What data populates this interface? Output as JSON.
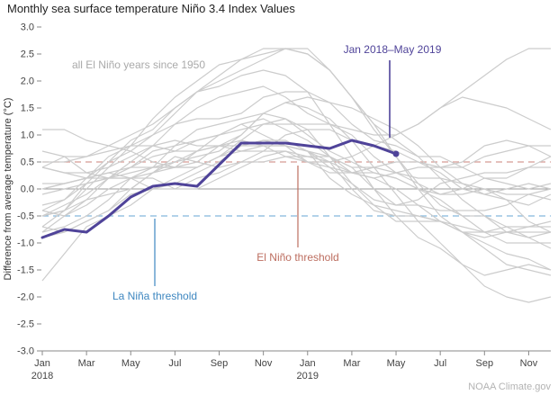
{
  "annotations": {
    "all_years_label": "all El Niño years since 1950",
    "highlight_label": "Jan 2018–May 2019",
    "el_nino_label": "El Niño threshold",
    "la_nina_label": "La Niña threshold",
    "credit": "NOAA Climate.gov"
  },
  "colors": {
    "highlight": "#4f4399",
    "background": "#cccccc",
    "zero_line": "#9b9b9b",
    "axis": "#8a8a8a",
    "el_nino_line": "#d59a93",
    "el_nino_text": "#bc6d5f",
    "la_nina_line": "#85b8dc",
    "la_nina_text": "#3e87c0",
    "all_years_text": "#aaaaaa",
    "credit_text": "#b3b3b3"
  },
  "chart_data": {
    "type": "line",
    "title": "Monthly sea surface temperature Niño 3.4 Index Values",
    "ylabel": "Difference from average temperature (°C)",
    "ylim": [
      -3.0,
      3.0
    ],
    "ytick_step": 0.5,
    "ytick_labels": [
      "3.0",
      "2.5",
      "2.0",
      "1.5",
      "1.0",
      "0.5",
      "0.0",
      "-0.5",
      "-1.0",
      "-1.5",
      "-2.0",
      "-2.5",
      "-3.0"
    ],
    "x_months": 24,
    "x_tick_labels": [
      "Jan",
      "Mar",
      "May",
      "Jul",
      "Sep",
      "Nov",
      "Jan",
      "Mar",
      "May",
      "Jul",
      "Sep",
      "Nov"
    ],
    "year_labels": [
      "2018",
      "2019"
    ],
    "thresholds": {
      "el_nino": 0.5,
      "la_nina": -0.5
    },
    "highlight_series": {
      "name": "Jan 2018–May 2019",
      "values": [
        -0.9,
        -0.75,
        -0.8,
        -0.5,
        -0.15,
        0.05,
        0.1,
        0.05,
        0.45,
        0.85,
        0.85,
        0.85,
        0.8,
        0.75,
        0.9,
        0.8,
        0.65
      ]
    },
    "background_series_label": "all El Niño years since 1950",
    "background_series": [
      [
        -0.8,
        -0.5,
        -0.2,
        0.2,
        0.4,
        0.6,
        0.7,
        0.9,
        1.0,
        1.2,
        1.0,
        0.8,
        0.5,
        0.4,
        0.3,
        0.3,
        0.2,
        0.0,
        -0.1,
        0.0,
        0.2,
        0.1,
        0.0,
        0.1
      ],
      [
        0.4,
        0.6,
        0.6,
        0.7,
        0.8,
        0.8,
        0.7,
        0.7,
        0.8,
        0.8,
        0.8,
        0.8,
        0.7,
        0.5,
        0.0,
        -0.4,
        -0.5,
        -0.5,
        -0.6,
        -0.8,
        -0.9,
        -0.8,
        -0.7,
        -0.7
      ],
      [
        -0.3,
        -0.2,
        0.2,
        0.6,
        0.8,
        1.0,
        1.2,
        1.3,
        1.3,
        1.4,
        1.7,
        1.8,
        1.8,
        1.6,
        1.2,
        0.9,
        0.8,
        0.6,
        0.6,
        0.4,
        0.2,
        0.2,
        0.4,
        0.6
      ],
      [
        -0.4,
        -0.2,
        0.1,
        0.2,
        0.2,
        0.4,
        0.8,
        1.1,
        1.2,
        1.3,
        1.4,
        1.3,
        1.1,
        0.6,
        0.1,
        -0.3,
        -0.6,
        -0.6,
        -0.6,
        -0.7,
        -0.8,
        -0.8,
        -0.8,
        -0.8
      ],
      [
        -0.5,
        -0.3,
        -0.1,
        0.2,
        0.5,
        0.8,
        1.2,
        1.5,
        1.7,
        1.8,
        1.9,
        1.7,
        1.4,
        1.2,
        1.0,
        0.6,
        0.3,
        0.2,
        0.2,
        0.1,
        0.0,
        -0.1,
        -0.1,
        -0.2
      ],
      [
        -0.7,
        -0.8,
        -0.6,
        -0.4,
        0.0,
        0.3,
        0.6,
        0.5,
        0.4,
        0.5,
        0.7,
        1.0,
        1.1,
        1.1,
        0.9,
        0.8,
        0.7,
        0.5,
        0.4,
        0.5,
        0.8,
        0.9,
        0.8,
        0.6
      ],
      [
        1.1,
        1.1,
        0.9,
        0.8,
        0.7,
        0.5,
        0.4,
        0.5,
        0.8,
        0.9,
        0.8,
        0.6,
        0.5,
        0.3,
        0.3,
        0.2,
        0.0,
        -0.3,
        -0.6,
        -0.8,
        -0.8,
        -0.7,
        -0.9,
        -1.1
      ],
      [
        -0.7,
        -0.4,
        0.1,
        0.5,
        0.9,
        1.1,
        1.5,
        1.8,
        1.9,
        2.1,
        2.2,
        2.1,
        1.8,
        1.2,
        0.6,
        0.0,
        -0.5,
        -0.9,
        -1.1,
        -1.4,
        -1.8,
        -2.0,
        -2.1,
        -2.0
      ],
      [
        -1.7,
        -1.2,
        -0.7,
        -0.5,
        -0.3,
        0.0,
        0.2,
        0.4,
        0.6,
        0.8,
        0.9,
        0.8,
        0.7,
        0.6,
        0.3,
        0.2,
        0.3,
        0.4,
        0.4,
        0.4,
        0.6,
        0.7,
        0.8,
        0.8
      ],
      [
        0.7,
        0.6,
        0.3,
        0.2,
        0.3,
        0.4,
        0.4,
        0.4,
        0.6,
        0.7,
        0.8,
        0.8,
        0.7,
        0.4,
        0.1,
        -0.2,
        -0.3,
        -0.3,
        -0.4,
        -0.4,
        -0.4,
        -0.3,
        -0.1,
        0.0
      ],
      [
        0.0,
        0.1,
        0.2,
        0.3,
        0.2,
        0.0,
        0.0,
        0.2,
        0.3,
        0.5,
        0.5,
        0.6,
        0.6,
        0.5,
        0.3,
        0.4,
        0.5,
        0.5,
        0.3,
        0.0,
        -0.1,
        0.0,
        0.1,
        0.0
      ],
      [
        0.0,
        0.1,
        0.2,
        0.5,
        0.7,
        1.0,
        1.4,
        1.8,
        2.0,
        2.2,
        2.4,
        2.6,
        2.6,
        2.2,
        1.7,
        1.2,
        0.9,
        0.6,
        0.2,
        -0.2,
        -0.5,
        -0.8,
        -0.9,
        -0.8
      ],
      [
        -0.5,
        -0.4,
        -0.2,
        -0.1,
        0.0,
        0.3,
        0.4,
        0.7,
        1.0,
        1.1,
        1.2,
        1.2,
        1.2,
        1.2,
        1.1,
        1.0,
        1.0,
        1.2,
        1.5,
        1.7,
        1.6,
        1.5,
        1.3,
        1.1
      ],
      [
        0.4,
        0.3,
        0.3,
        0.4,
        0.6,
        0.8,
        0.9,
        0.8,
        0.8,
        1.0,
        1.4,
        1.6,
        1.7,
        1.6,
        1.5,
        1.3,
        1.1,
        0.8,
        0.4,
        0.1,
        -0.1,
        -0.2,
        -0.3,
        -0.1
      ],
      [
        0.1,
        0.1,
        0.2,
        0.3,
        0.4,
        0.4,
        0.4,
        0.4,
        0.6,
        0.9,
        1.2,
        1.3,
        1.0,
        0.7,
        0.5,
        0.3,
        0.2,
        0.0,
        -0.2,
        -0.5,
        -0.8,
        -1.0,
        -1.0,
        -1.0
      ],
      [
        -0.5,
        -0.4,
        0.0,
        0.4,
        0.8,
        1.3,
        1.7,
        2.0,
        2.3,
        2.4,
        2.5,
        2.6,
        2.5,
        2.2,
        1.7,
        1.2,
        0.6,
        0.0,
        -0.5,
        -0.8,
        -1.0,
        -1.2,
        -1.3,
        -1.5
      ],
      [
        -0.1,
        0.0,
        0.1,
        0.2,
        0.4,
        0.7,
        0.8,
        0.9,
        1.0,
        1.2,
        1.3,
        1.1,
        0.9,
        0.6,
        0.4,
        0.0,
        -0.3,
        -0.2,
        0.1,
        0.2,
        0.3,
        0.3,
        0.4,
        0.4
      ],
      [
        0.4,
        0.3,
        0.2,
        0.2,
        0.2,
        0.3,
        0.5,
        0.7,
        0.8,
        0.7,
        0.7,
        0.7,
        0.6,
        0.6,
        0.4,
        0.4,
        0.3,
        0.1,
        -0.1,
        -0.1,
        0.0,
        -0.2,
        -0.6,
        -0.8
      ],
      [
        -0.9,
        -0.8,
        -0.6,
        -0.4,
        -0.1,
        0.0,
        0.1,
        0.3,
        0.5,
        0.8,
        0.9,
        0.9,
        0.7,
        0.2,
        -0.1,
        -0.3,
        -0.4,
        -0.5,
        -0.6,
        -0.8,
        -1.1,
        -1.4,
        -1.5,
        -1.6
      ],
      [
        -0.8,
        -0.7,
        -0.5,
        -0.2,
        0.2,
        0.4,
        0.5,
        0.6,
        0.7,
        1.0,
        1.4,
        1.6,
        1.5,
        1.3,
        0.9,
        0.4,
        -0.1,
        -0.6,
        -1.0,
        -1.4,
        -1.6,
        -1.5,
        -1.4,
        -1.5
      ],
      [
        -0.4,
        -0.5,
        -0.3,
        0.0,
        0.2,
        0.2,
        0.0,
        0.0,
        0.2,
        0.4,
        0.6,
        0.7,
        0.5,
        0.5,
        0.6,
        0.8,
        1.0,
        1.2,
        1.5,
        1.8,
        2.1,
        2.4,
        2.6,
        2.6
      ],
      [
        0.5,
        0.5,
        0.6,
        0.8,
        1.0,
        1.2,
        1.5,
        1.8,
        2.1,
        2.4,
        2.6,
        2.6,
        2.5,
        2.2,
        1.7,
        1.1,
        0.6,
        0.1,
        -0.3,
        -0.5,
        -0.5,
        -0.7,
        -0.7,
        -0.6
      ]
    ]
  }
}
